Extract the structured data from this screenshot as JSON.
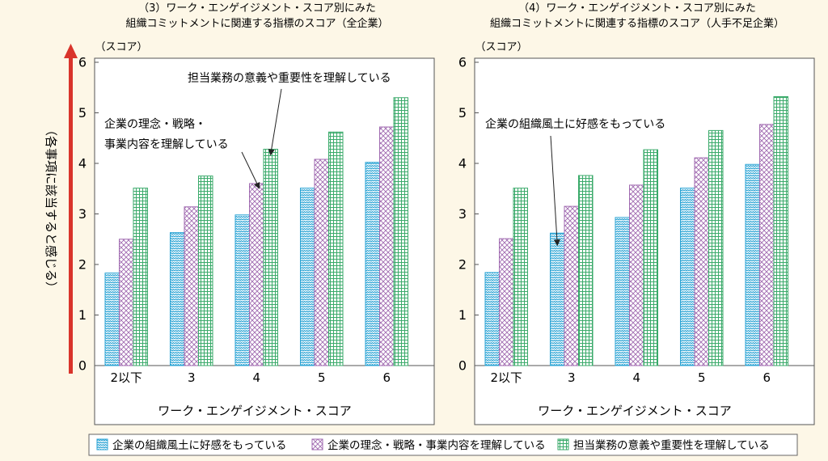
{
  "y_axis_caption": "（各事項に該当すると感じる）",
  "accent_color": "#d9342b",
  "legend": [
    {
      "label": "企業の組織風土に好感をもっている",
      "color": "#29a3d4",
      "pattern": "wave"
    },
    {
      "label": "企業の理念・戦略・事業内容を理解している",
      "color": "#a06ab0",
      "pattern": "cross"
    },
    {
      "label": "担当業務の意義や重要性を理解している",
      "color": "#3aaa6a",
      "pattern": "grid"
    }
  ],
  "chart_data": [
    {
      "type": "bar",
      "title_line1": "（3）ワーク・エンゲイジメント・スコア別にみた",
      "title_line2": "組織コミットメントに関連する指標のスコア（全企業）",
      "ylabel": "（スコア）",
      "xlabel": "ワーク・エンゲイジメント・スコア",
      "ylim": [
        0,
        6
      ],
      "yticks": [
        "0",
        "1",
        "2",
        "3",
        "4",
        "5",
        "6"
      ],
      "categories": [
        "2以下",
        "3",
        "4",
        "5",
        "6"
      ],
      "series": [
        {
          "name": "企業の組織風土に好感をもっている",
          "values": [
            1.83,
            2.63,
            2.98,
            3.51,
            4.02
          ]
        },
        {
          "name": "企業の理念・戦略・事業内容を理解している",
          "values": [
            2.5,
            3.14,
            3.6,
            4.08,
            4.72
          ]
        },
        {
          "name": "担当業務の意義や重要性を理解している",
          "values": [
            3.51,
            3.75,
            4.28,
            4.62,
            5.3
          ]
        }
      ],
      "annotations": [
        {
          "lines": [
            "担当業務の意義や重要性を理解している"
          ],
          "series": 2,
          "category": 2
        },
        {
          "lines": [
            "企業の理念・戦略・",
            "事業内容を理解している"
          ],
          "series": 1,
          "category": 2
        }
      ]
    },
    {
      "type": "bar",
      "title_line1": "（4）ワーク・エンゲイジメント・スコア別にみた",
      "title_line2": "組織コミットメントに関連する指標のスコア（人手不足企業）",
      "ylabel": "（スコア）",
      "xlabel": "ワーク・エンゲイジメント・スコア",
      "ylim": [
        0,
        6
      ],
      "yticks": [
        "0",
        "1",
        "2",
        "3",
        "4",
        "5",
        "6"
      ],
      "categories": [
        "2以下",
        "3",
        "4",
        "5",
        "6"
      ],
      "series": [
        {
          "name": "企業の組織風土に好感をもっている",
          "values": [
            1.84,
            2.62,
            2.93,
            3.51,
            3.98
          ]
        },
        {
          "name": "企業の理念・戦略・事業内容を理解している",
          "values": [
            2.51,
            3.15,
            3.57,
            4.11,
            4.77
          ]
        },
        {
          "name": "担当業務の意義や重要性を理解している",
          "values": [
            3.51,
            3.76,
            4.27,
            4.65,
            5.32
          ]
        }
      ],
      "annotations": [
        {
          "lines": [
            "企業の組織風土に好感をもっている"
          ],
          "series": 0,
          "category": 1
        }
      ]
    }
  ]
}
